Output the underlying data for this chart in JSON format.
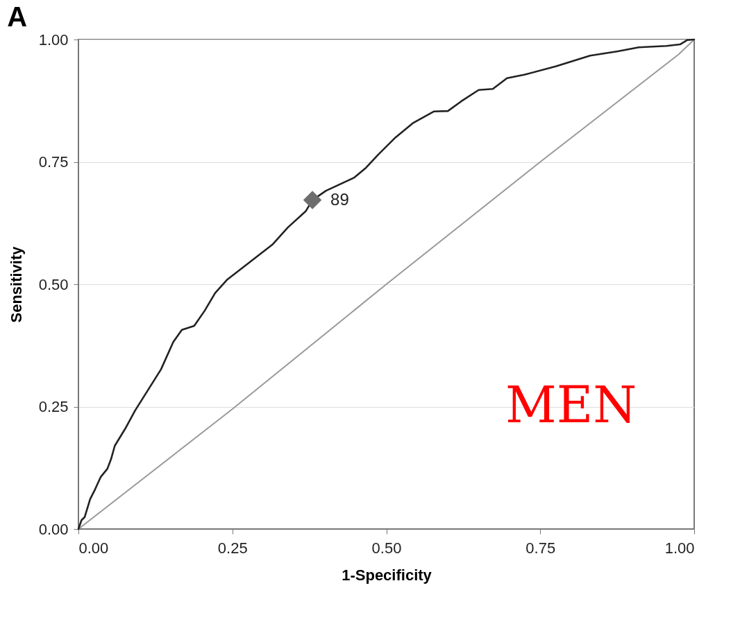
{
  "chart_data": {
    "type": "line",
    "title": "A",
    "xlabel": "1-Specificity",
    "ylabel": "Sensitivity",
    "xlim": [
      0,
      1
    ],
    "ylim": [
      0,
      1
    ],
    "xticks": [
      {
        "value": 0,
        "label": "0.00"
      },
      {
        "value": 0.25,
        "label": "0.25"
      },
      {
        "value": 0.5,
        "label": "0.50"
      },
      {
        "value": 0.75,
        "label": "0.75"
      },
      {
        "value": 1,
        "label": "1.00"
      }
    ],
    "yticks": [
      {
        "value": 0,
        "label": "0.00"
      },
      {
        "value": 0.25,
        "label": "0.25"
      },
      {
        "value": 0.5,
        "label": "0.50"
      },
      {
        "value": 0.75,
        "label": "0.75"
      },
      {
        "value": 1,
        "label": "1.00"
      }
    ],
    "grid": "y",
    "annotations": [
      "MEN",
      {
        "text": "89",
        "x": 0.38,
        "y": 0.672
      }
    ],
    "series": [
      {
        "color": "#999999",
        "marker": "none",
        "x": [
          0,
          0.25,
          0.5,
          0.75,
          0.975,
          1
        ],
        "values": [
          0,
          0.245,
          0.5,
          0.75,
          0.97,
          1
        ]
      },
      {
        "color": "#222222",
        "marker": "none",
        "x": [
          0,
          0.005,
          0.01,
          0.019,
          0.027,
          0.036,
          0.047,
          0.053,
          0.059,
          0.076,
          0.092,
          0.109,
          0.134,
          0.154,
          0.168,
          0.188,
          0.205,
          0.222,
          0.242,
          0.278,
          0.315,
          0.34,
          0.369,
          0.38,
          0.402,
          0.448,
          0.467,
          0.487,
          0.515,
          0.543,
          0.577,
          0.6,
          0.622,
          0.65,
          0.673,
          0.696,
          0.724,
          0.775,
          0.831,
          0.876,
          0.91,
          0.955,
          0.977,
          0.989,
          1
        ],
        "values": [
          0,
          0.018,
          0.024,
          0.061,
          0.081,
          0.106,
          0.123,
          0.143,
          0.17,
          0.205,
          0.242,
          0.276,
          0.326,
          0.382,
          0.407,
          0.415,
          0.446,
          0.482,
          0.51,
          0.545,
          0.581,
          0.616,
          0.649,
          0.672,
          0.691,
          0.718,
          0.738,
          0.765,
          0.8,
          0.829,
          0.853,
          0.854,
          0.874,
          0.897,
          0.899,
          0.921,
          0.928,
          0.945,
          0.967,
          0.976,
          0.984,
          0.987,
          0.99,
          0.999,
          1
        ]
      },
      {
        "type": "scatter",
        "color": "#6d6d6d",
        "marker": "diamond",
        "x": [
          0.38
        ],
        "values": [
          0.672
        ]
      }
    ]
  }
}
